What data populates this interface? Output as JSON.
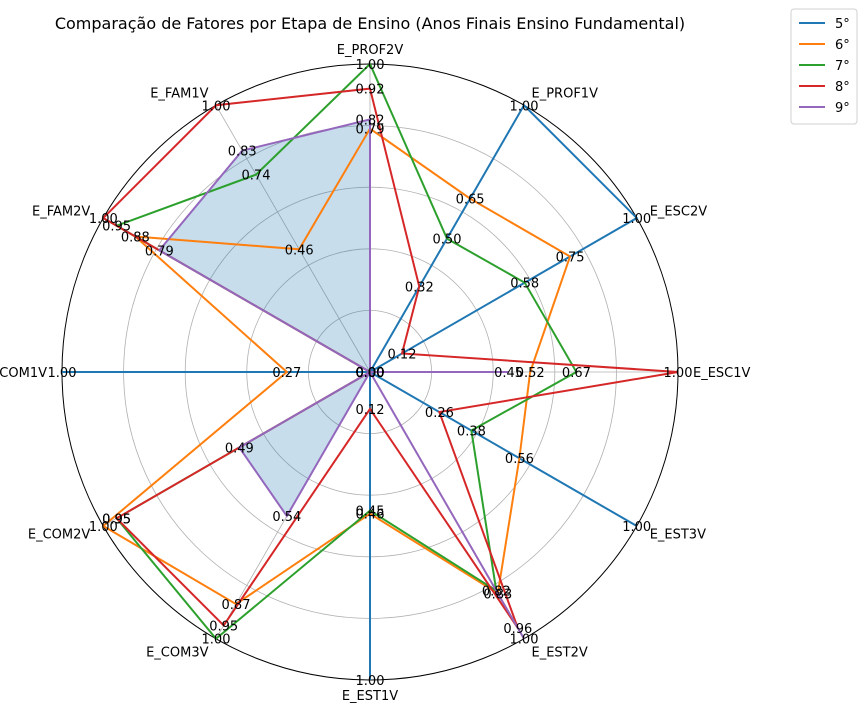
{
  "chart_data": {
    "type": "radar",
    "title": "Comparação de Fatores por Etapa de Ensino (Anos Finais Ensino Fundamental)",
    "axes": [
      "E_PROF2V",
      "E_PROF1V",
      "E_ESC2V",
      "E_ESC1V",
      "E_EST3V",
      "E_EST2V",
      "E_EST1V",
      "E_COM3V",
      "E_COM2V",
      "E_COM1V",
      "E_FAM2V",
      "E_FAM1V"
    ],
    "rlim": [
      0,
      1
    ],
    "grid": true,
    "legend_position": "top-right",
    "filled_series": "9°",
    "series": [
      {
        "name": "5°",
        "color": "#1f77b4",
        "values": [
          0.0,
          1.0,
          1.0,
          0.0,
          1.0,
          0.0,
          1.0,
          0.0,
          0.0,
          1.0,
          0.0,
          0.0
        ],
        "labels": [
          "0.00",
          "1.00",
          "1.00",
          "0.00",
          "1.00",
          "0.00",
          "1.00",
          "0.00",
          "0.00",
          "1.00",
          "0.00",
          "0.00"
        ]
      },
      {
        "name": "6°",
        "color": "#ff7f0e",
        "values": [
          0.79,
          0.65,
          0.75,
          0.52,
          0.56,
          0.83,
          0.46,
          0.87,
          1.0,
          0.27,
          0.88,
          0.46
        ],
        "labels": [
          "0.79",
          "0.65",
          "0.75",
          "0.52",
          "0.56",
          "0.83",
          "0.46",
          "0.87",
          "1.00",
          "0.27",
          "0.88",
          "0.46"
        ]
      },
      {
        "name": "7°",
        "color": "#2ca02c",
        "values": [
          1.0,
          0.5,
          0.58,
          0.67,
          0.38,
          0.82,
          0.45,
          1.0,
          0.95,
          0.0,
          0.95,
          0.74
        ],
        "labels": [
          "1.00",
          "0.50",
          "0.58",
          "0.67",
          "0.38",
          "0.82",
          "0.45",
          "1.00",
          "0.95",
          "0.00",
          "0.95",
          "0.74"
        ]
      },
      {
        "name": "8°",
        "color": "#d62728",
        "values": [
          0.92,
          0.32,
          0.12,
          1.0,
          0.26,
          0.96,
          0.12,
          0.95,
          0.95,
          0.0,
          1.0,
          1.0
        ],
        "labels": [
          "0.92",
          "0.32",
          "0.12",
          "1.00",
          "0.26",
          "0.96",
          "0.12",
          "0.95",
          "0.95",
          "0.00",
          "1.00",
          "1.00"
        ]
      },
      {
        "name": "9°",
        "color": "#9467bd",
        "values": [
          0.82,
          0.0,
          0.0,
          0.45,
          0.0,
          1.0,
          0.0,
          0.54,
          0.49,
          0.0,
          0.79,
          0.83
        ],
        "labels": [
          "0.82",
          "0.00",
          "0.00",
          "0.45",
          "0.00",
          "1.00",
          "0.00",
          "0.54",
          "0.49",
          "0.00",
          "0.79",
          "0.83"
        ]
      }
    ]
  }
}
